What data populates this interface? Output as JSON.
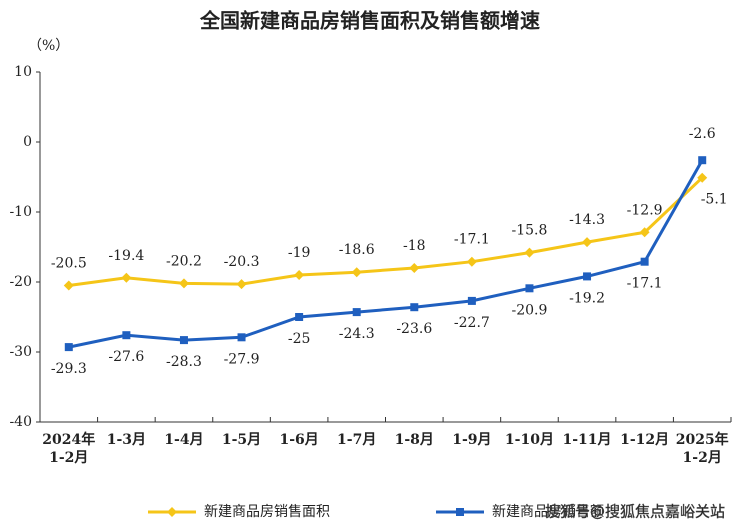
{
  "chart_data": {
    "type": "line",
    "title": "全国新建商品房销售面积及销售额增速",
    "y_unit": "（%）",
    "categories": [
      "2024年\n1-2月",
      "1-3月",
      "1-4月",
      "1-5月",
      "1-6月",
      "1-7月",
      "1-8月",
      "1-9月",
      "1-10月",
      "1-11月",
      "1-12月",
      "2025年\n1-2月"
    ],
    "series": [
      {
        "name": "新建商品房销售面积",
        "color": "#f5c518",
        "marker": "diamond",
        "values": [
          -20.5,
          -19.4,
          -20.2,
          -20.3,
          -19.0,
          -18.6,
          -18.0,
          -17.1,
          -15.8,
          -14.3,
          -12.9,
          -5.1
        ]
      },
      {
        "name": "新建商品房销售额",
        "color": "#1f5fbf",
        "marker": "square",
        "values": [
          -29.3,
          -27.6,
          -28.3,
          -27.9,
          -25.0,
          -24.3,
          -23.6,
          -22.7,
          -20.9,
          -19.2,
          -17.1,
          -2.6
        ]
      }
    ],
    "ylim": [
      -40,
      10
    ],
    "yticks": [
      10,
      0,
      -10,
      -20,
      -30,
      -40
    ],
    "grid": false,
    "watermark": "搜狐号@搜狐焦点嘉峪关站"
  }
}
